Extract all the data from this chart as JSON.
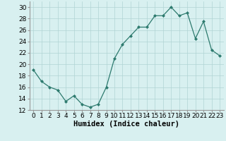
{
  "x": [
    0,
    1,
    2,
    3,
    4,
    5,
    6,
    7,
    8,
    9,
    10,
    11,
    12,
    13,
    14,
    15,
    16,
    17,
    18,
    19,
    20,
    21,
    22,
    23
  ],
  "y": [
    19,
    17,
    16,
    15.5,
    13.5,
    14.5,
    13,
    12.5,
    13,
    16,
    21,
    23.5,
    25,
    26.5,
    26.5,
    28.5,
    28.5,
    30,
    28.5,
    29,
    24.5,
    27.5,
    22.5,
    21.5
  ],
  "line_color": "#2d7a6e",
  "marker_color": "#2d7a6e",
  "bg_color": "#d8f0f0",
  "grid_color": "#b0d4d4",
  "xlabel": "Humidex (Indice chaleur)",
  "xlim": [
    -0.5,
    23.5
  ],
  "ylim": [
    12,
    31
  ],
  "yticks": [
    12,
    14,
    16,
    18,
    20,
    22,
    24,
    26,
    28,
    30
  ],
  "xticks": [
    0,
    1,
    2,
    3,
    4,
    5,
    6,
    7,
    8,
    9,
    10,
    11,
    12,
    13,
    14,
    15,
    16,
    17,
    18,
    19,
    20,
    21,
    22,
    23
  ],
  "label_fontsize": 7.5,
  "tick_fontsize": 6.5
}
